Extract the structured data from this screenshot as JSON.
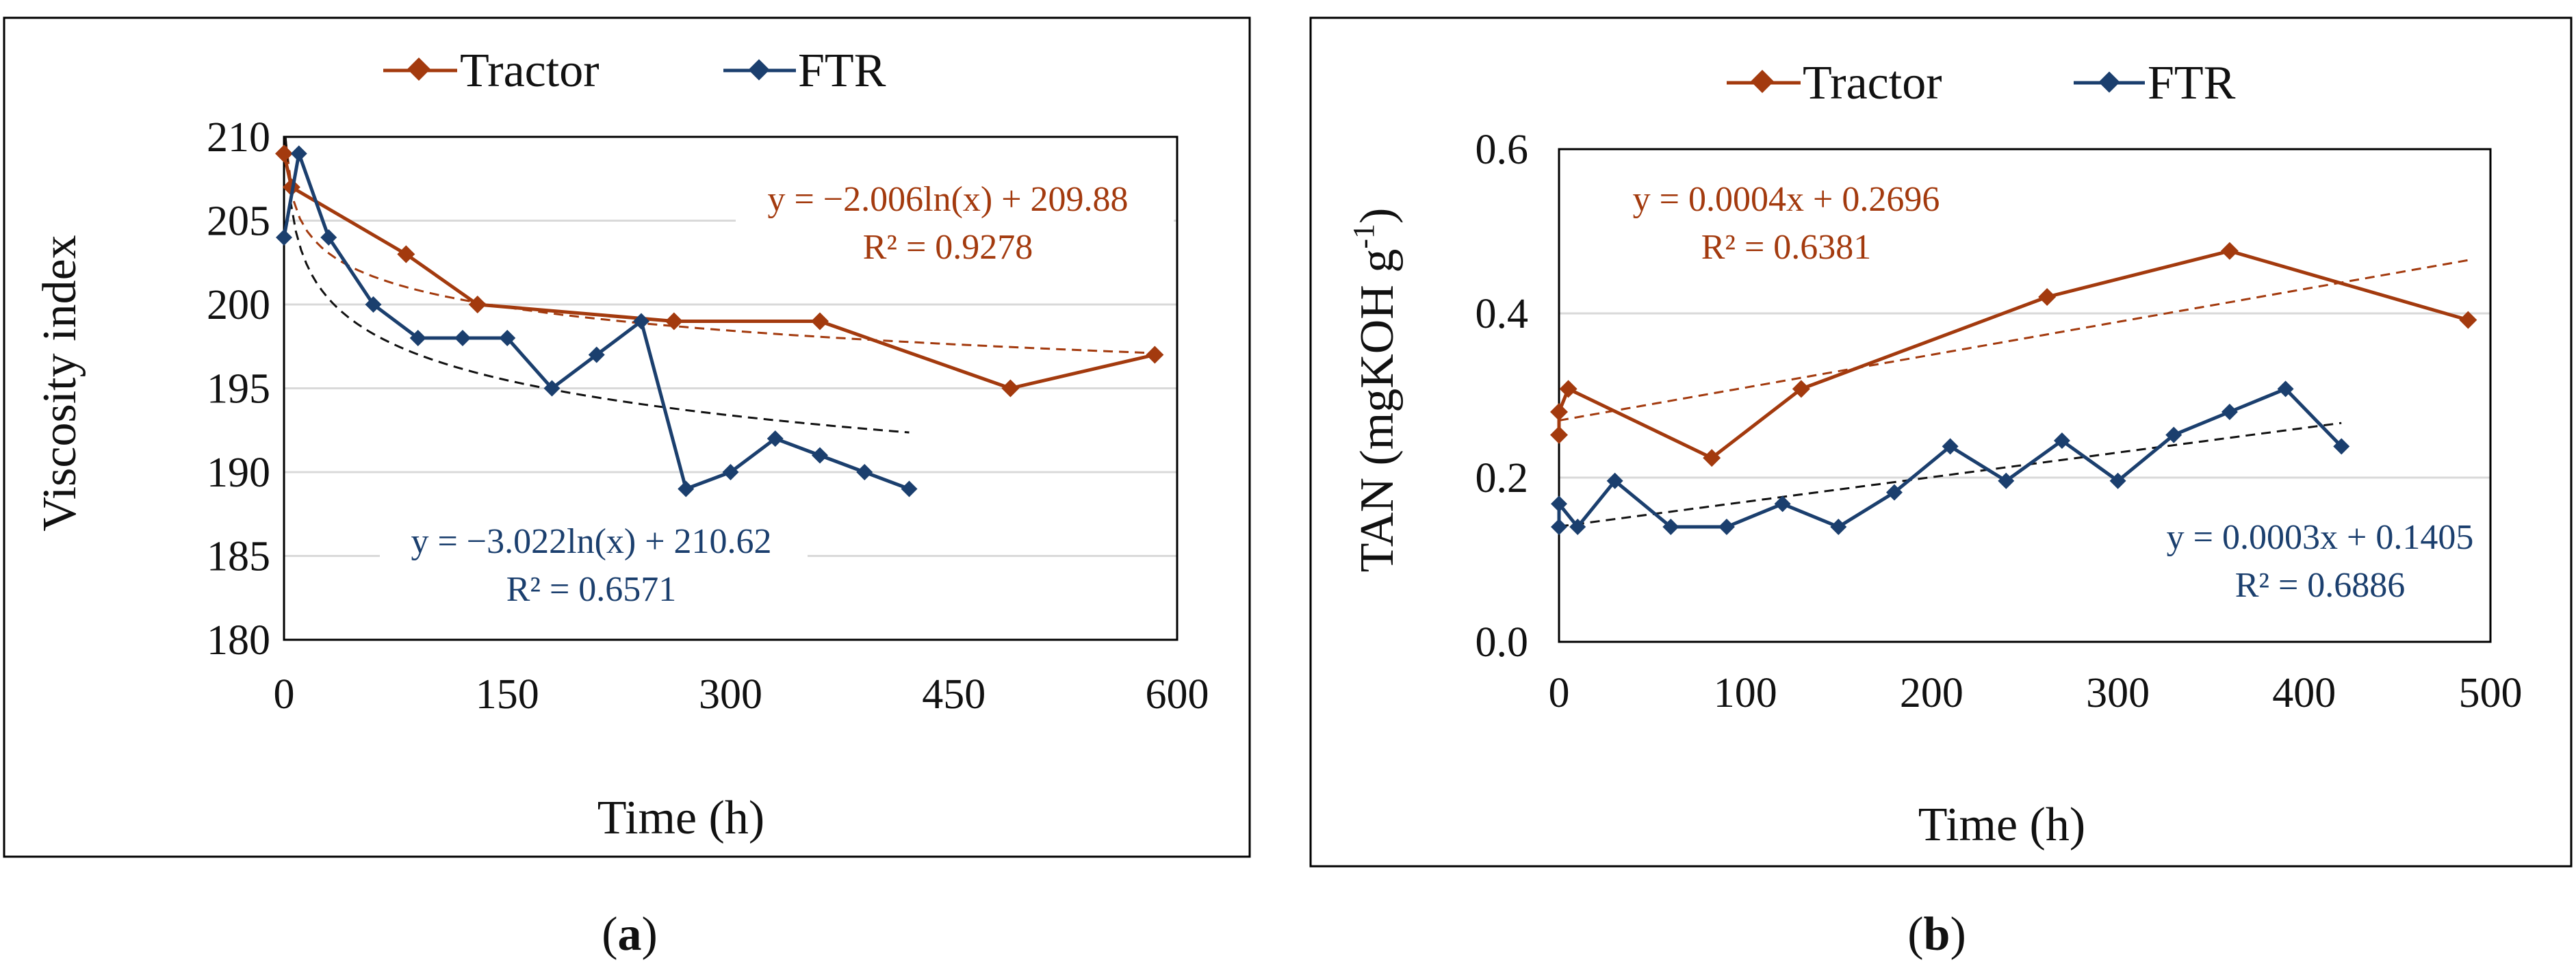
{
  "panels": {
    "a": {
      "label_prefix": "(",
      "label_letter": "a",
      "label_suffix": ")"
    },
    "b": {
      "label_prefix": "(",
      "label_letter": "b",
      "label_suffix": ")"
    }
  },
  "colors": {
    "tractor": "#A33A0E",
    "ftr": "#1B3F6E",
    "grid": "#D9D9D9",
    "axis": "#000000"
  },
  "chart_data": [
    {
      "type": "line",
      "xlabel": "Time (h)",
      "ylabel": "Viscosity index",
      "xlim": [
        0,
        600
      ],
      "ylim": [
        180,
        210
      ],
      "xticks": [
        "0",
        "150",
        "300",
        "450",
        "600"
      ],
      "yticks": [
        "180",
        "185",
        "190",
        "195",
        "200",
        "205",
        "210"
      ],
      "grid": "horizontal",
      "legend_position": "top",
      "series": [
        {
          "name": "Tractor",
          "color_key": "tractor",
          "x": [
            0,
            5,
            82,
            130,
            262,
            360,
            488,
            585
          ],
          "y": [
            209,
            207,
            203,
            200,
            199,
            199,
            195,
            197
          ]
        },
        {
          "name": "FTR",
          "color_key": "ftr",
          "x": [
            0,
            10,
            30,
            60,
            90,
            120,
            150,
            180,
            210,
            240,
            270,
            300,
            330,
            360,
            390,
            420
          ],
          "y": [
            204,
            209,
            204,
            200,
            198,
            198,
            198,
            195,
            197,
            199,
            189,
            190,
            192,
            191,
            190,
            189
          ]
        }
      ],
      "trendlines": [
        {
          "series": "Tractor",
          "kind": "log",
          "a": -2.006,
          "b": 209.88,
          "x_range": [
            1,
            585
          ],
          "equation": "y = −2.006ln(x) + 209.88",
          "r2": "R² = 0.9278"
        },
        {
          "series": "FTR",
          "kind": "log",
          "a": -3.022,
          "b": 210.62,
          "x_range": [
            1,
            420
          ],
          "equation": "y = −3.022ln(x) + 210.62",
          "r2": "R² = 0.6571"
        }
      ]
    },
    {
      "type": "line",
      "xlabel": "Time (h)",
      "ylabel_main": "TAN (mgKOH g",
      "ylabel_sup": "-1",
      "ylabel_end": ")",
      "xlim": [
        0,
        500
      ],
      "ylim": [
        0.0,
        0.6
      ],
      "xticks": [
        "0",
        "100",
        "200",
        "300",
        "400",
        "500"
      ],
      "yticks": [
        "0.0",
        "0.2",
        "0.4",
        "0.6"
      ],
      "grid": "horizontal",
      "legend_position": "top",
      "series": [
        {
          "name": "Tractor",
          "color_key": "tractor",
          "x": [
            0,
            0,
            5,
            82,
            130,
            262,
            360,
            488
          ],
          "y": [
            0.252,
            0.28,
            0.308,
            0.224,
            0.308,
            0.42,
            0.476,
            0.392
          ]
        },
        {
          "name": "FTR",
          "color_key": "ftr",
          "x": [
            0,
            0,
            10,
            30,
            60,
            90,
            120,
            150,
            180,
            210,
            240,
            270,
            300,
            330,
            360,
            390,
            420
          ],
          "y": [
            0.14,
            0.168,
            0.14,
            0.196,
            0.14,
            0.14,
            0.168,
            0.14,
            0.182,
            0.238,
            0.196,
            0.245,
            0.196,
            0.252,
            0.28,
            0.308,
            0.238
          ]
        }
      ],
      "trendlines": [
        {
          "series": "Tractor",
          "kind": "linear",
          "a": 0.0004,
          "b": 0.2696,
          "x_range": [
            0,
            488
          ],
          "equation": "y = 0.0004x + 0.2696",
          "r2": "R² = 0.6381"
        },
        {
          "series": "FTR",
          "kind": "linear",
          "a": 0.0003,
          "b": 0.1405,
          "x_range": [
            0,
            420
          ],
          "equation": "y = 0.0003x + 0.1405",
          "r2": "R² = 0.6886"
        }
      ]
    }
  ]
}
